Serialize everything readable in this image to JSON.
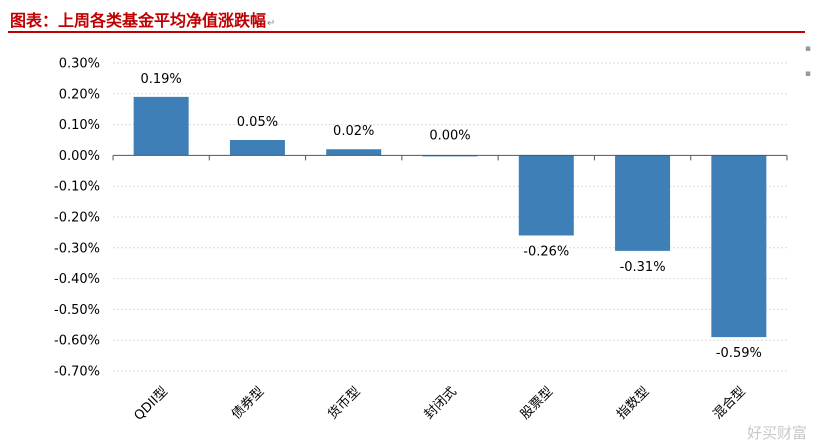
{
  "header": {
    "title": "图表：上周各类基金平均净值涨跌幅",
    "title_mark": "↵"
  },
  "watermark": "好买财富",
  "colors": {
    "title": "#c00000",
    "bar": "#3d7fb6",
    "grid": "#d9d9d9",
    "axis": "#555555"
  },
  "chart_data": {
    "type": "bar",
    "title": "",
    "xlabel": "",
    "ylabel": "",
    "ylim": [
      -0.7,
      0.3
    ],
    "yticks": [
      0.3,
      0.2,
      0.1,
      0.0,
      -0.1,
      -0.2,
      -0.3,
      -0.4,
      -0.5,
      -0.6,
      -0.7
    ],
    "ytick_labels": [
      "0.30%",
      "0.20%",
      "0.10%",
      "0.00%",
      "-0.10%",
      "-0.20%",
      "-0.30%",
      "-0.40%",
      "-0.50%",
      "-0.60%",
      "-0.70%"
    ],
    "grid": true,
    "legend": "none",
    "categories": [
      "QDII型",
      "债券型",
      "货币型",
      "封闭式",
      "股票型",
      "指数型",
      "混合型"
    ],
    "values": [
      0.19,
      0.05,
      0.02,
      0.0,
      -0.26,
      -0.31,
      -0.59
    ],
    "data_labels": [
      "0.19%",
      "0.05%",
      "0.02%",
      "0.00%",
      "-0.26%",
      "-0.31%",
      "-0.59%"
    ]
  }
}
